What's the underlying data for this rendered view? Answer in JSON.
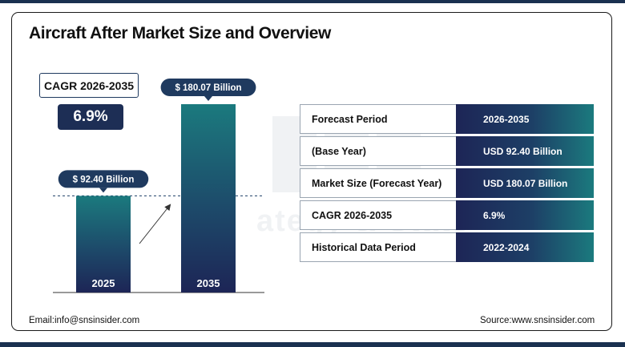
{
  "title": "Aircraft After Market Size and Overview",
  "cagr": {
    "label": "CAGR 2026-2035",
    "value": "6.9%"
  },
  "chart_data": {
    "type": "bar",
    "categories": [
      "2025",
      "2035"
    ],
    "values": [
      92.4,
      180.07
    ],
    "data_labels": [
      "$ 92.40 Billion",
      "$ 180.07 Billion"
    ],
    "unit": "USD Billion",
    "ylim": [
      0,
      180.07
    ],
    "grid": false,
    "reference_line": {
      "value": 92.4,
      "style": "dashed"
    },
    "growth_arrow": true
  },
  "summary_table": [
    {
      "label": "Forecast Period",
      "value": "2026-2035"
    },
    {
      "label": "(Base Year)",
      "value": "USD 92.40 Billion"
    },
    {
      "label": "Market Size (Forecast Year)",
      "value": "USD 180.07 Billion"
    },
    {
      "label": "CAGR 2026-2035",
      "value": "6.9%"
    },
    {
      "label": "Historical Data Period",
      "value": "2022-2024"
    }
  ],
  "footer": {
    "email": "Email:info@snsinsider.com",
    "source": "Source:www.snsinsider.com"
  },
  "colors": {
    "navy": "#1d2e55",
    "teal": "#1b7a7e",
    "label_pill": "#1f3a5f"
  }
}
